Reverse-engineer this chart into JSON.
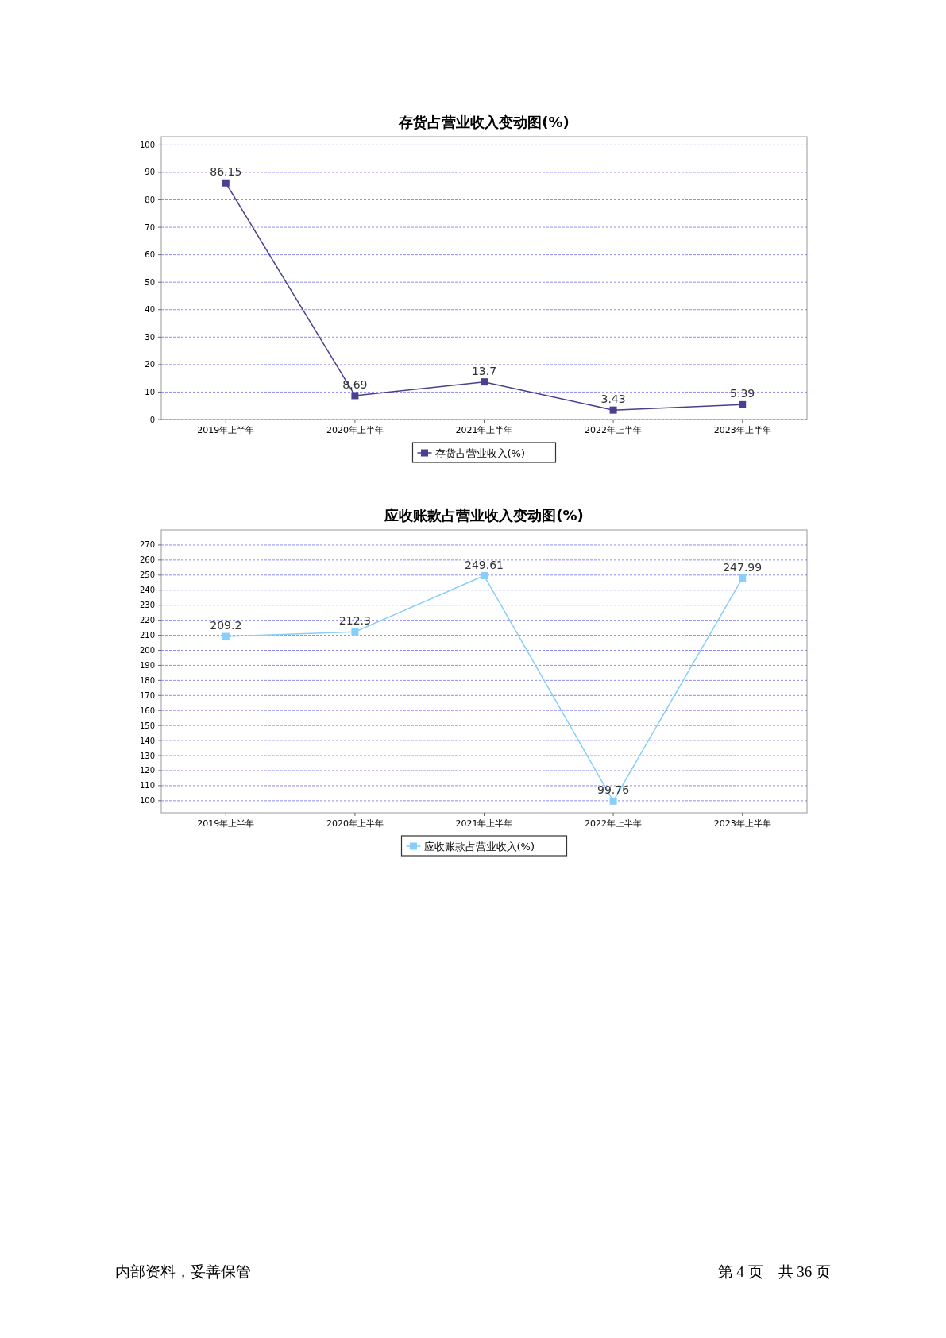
{
  "chart_data": [
    {
      "type": "line",
      "title": "存货占营业收入变动图(%)",
      "categories": [
        "2019年上半年",
        "2020年上半年",
        "2021年上半年",
        "2022年上半年",
        "2023年上半年"
      ],
      "series": [
        {
          "name": "存货占营业收入(%)",
          "color": "#4b3f8f",
          "values": [
            86.15,
            8.69,
            13.7,
            3.43,
            5.39
          ]
        }
      ],
      "ylim": [
        0,
        103
      ],
      "yticks": [
        0,
        10,
        20,
        30,
        40,
        50,
        60,
        70,
        80,
        90,
        100
      ],
      "grid": "y",
      "legend": "bottom",
      "marker": "square",
      "line_style": "solid",
      "data_labels": true
    },
    {
      "type": "line",
      "title": "应收账款占营业收入变动图(%)",
      "categories": [
        "2019年上半年",
        "2020年上半年",
        "2021年上半年",
        "2022年上半年",
        "2023年上半年"
      ],
      "series": [
        {
          "name": "应收账款占营业收入(%)",
          "color": "#87cefa",
          "values": [
            209.2,
            212.3,
            249.61,
            99.76,
            247.99
          ]
        }
      ],
      "ylim": [
        92,
        280
      ],
      "yticks": [
        100,
        110,
        120,
        130,
        140,
        150,
        160,
        170,
        180,
        190,
        200,
        210,
        220,
        230,
        240,
        250,
        260,
        270
      ],
      "grid": "y",
      "legend": "bottom",
      "marker": "square",
      "line_style": "solid",
      "data_labels": true,
      "annotations": [
        "内部资料，妥善保管",
        "第 4 页　共 36 页"
      ]
    }
  ]
}
